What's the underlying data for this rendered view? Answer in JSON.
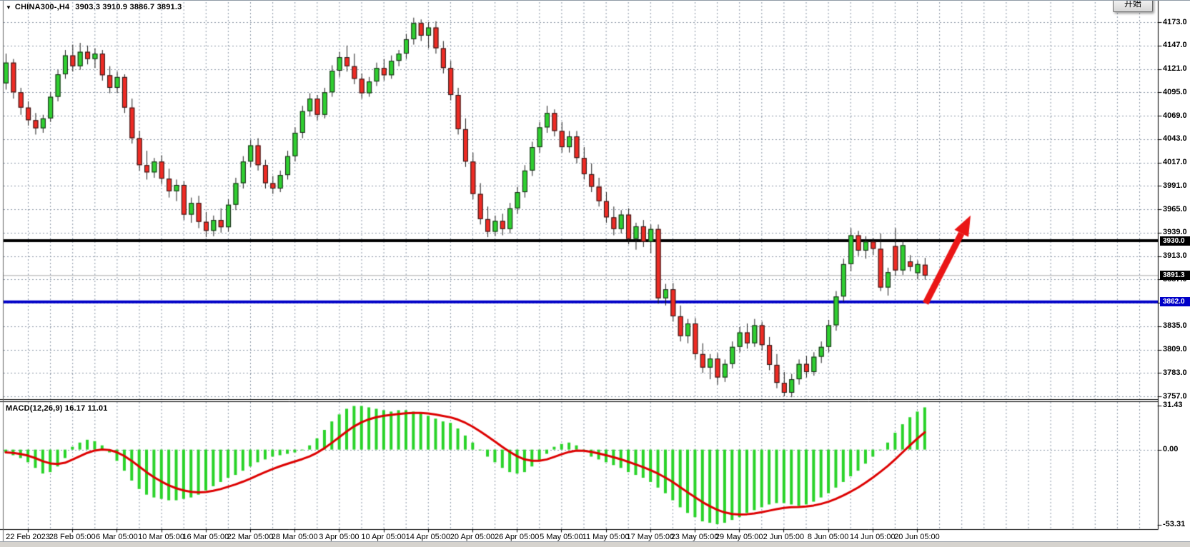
{
  "window": {
    "title_symbol": "CHINA300-,H4",
    "title_ohlc": "3903.3 3910.9 3886.7 3891.3",
    "dropdown_glyph": "▼",
    "start_button_label": "开始"
  },
  "chart_data": {
    "type": "candlestick",
    "symbol": "CHINA300-",
    "timeframe": "H4",
    "quote": {
      "open": 3903.3,
      "high": 3910.9,
      "low": 3886.7,
      "close": 3891.3
    },
    "colors": {
      "bull": "#2fcf30",
      "bear": "#ef2b24",
      "outline": "#1c1c1c",
      "grid": "#8a96a6",
      "resistance_line": "#000000",
      "support_line": "#0000c8",
      "current_price_line": "#aaaaaa",
      "macd_histogram": "#29d329",
      "macd_signal": "#dd0000",
      "arrow": "#ea1515",
      "badge_black": "#000000",
      "badge_blue": "#0000c8"
    },
    "price_axis": {
      "labels": [
        "4173.0",
        "4147.0",
        "4121.0",
        "4095.0",
        "4069.0",
        "4043.0",
        "4017.0",
        "3991.0",
        "3965.0",
        "3939.0",
        "3913.0",
        "3887.0",
        "3861.0",
        "3835.0",
        "3809.0",
        "3783.0",
        "3757.0"
      ],
      "top_value": 4173.0,
      "bottom_value": 3757.0,
      "step": 26.0
    },
    "hlines": [
      {
        "price": 3930.0,
        "label": "3930.0",
        "style": "thick",
        "color_key": "resistance_line",
        "badge": "badge_black"
      },
      {
        "price": 3891.3,
        "label": "3891.3",
        "style": "thin",
        "color_key": "current_price_line",
        "badge": "badge_black"
      },
      {
        "price": 3862.0,
        "label": "3862.0",
        "style": "thick",
        "color_key": "support_line",
        "badge": "badge_blue"
      }
    ],
    "candles": [
      [
        4105,
        4138,
        4098,
        4128
      ],
      [
        4128,
        4132,
        4088,
        4095
      ],
      [
        4095,
        4100,
        4070,
        4078
      ],
      [
        4078,
        4085,
        4058,
        4064
      ],
      [
        4064,
        4072,
        4048,
        4055
      ],
      [
        4055,
        4070,
        4050,
        4066
      ],
      [
        4066,
        4095,
        4062,
        4090
      ],
      [
        4090,
        4120,
        4085,
        4115
      ],
      [
        4115,
        4142,
        4110,
        4136
      ],
      [
        4136,
        4148,
        4118,
        4124
      ],
      [
        4124,
        4150,
        4120,
        4140
      ],
      [
        4140,
        4147,
        4126,
        4132
      ],
      [
        4132,
        4144,
        4122,
        4138
      ],
      [
        4138,
        4142,
        4108,
        4114
      ],
      [
        4114,
        4124,
        4094,
        4100
      ],
      [
        4100,
        4118,
        4094,
        4112
      ],
      [
        4112,
        4115,
        4072,
        4078
      ],
      [
        4078,
        4088,
        4038,
        4044
      ],
      [
        4044,
        4052,
        4008,
        4014
      ],
      [
        4014,
        4030,
        3998,
        4006
      ],
      [
        4006,
        4022,
        4000,
        4018
      ],
      [
        4018,
        4025,
        3993,
        3999
      ],
      [
        3999,
        4010,
        3978,
        3985
      ],
      [
        3985,
        3998,
        3974,
        3992
      ],
      [
        3992,
        3996,
        3953,
        3959
      ],
      [
        3959,
        3978,
        3950,
        3972
      ],
      [
        3972,
        3980,
        3944,
        3951
      ],
      [
        3951,
        3962,
        3934,
        3941
      ],
      [
        3941,
        3958,
        3935,
        3953
      ],
      [
        3953,
        3966,
        3939,
        3945
      ],
      [
        3945,
        3976,
        3940,
        3970
      ],
      [
        3970,
        4000,
        3964,
        3994
      ],
      [
        3994,
        4024,
        3988,
        4018
      ],
      [
        4018,
        4042,
        4012,
        4036
      ],
      [
        4036,
        4044,
        4008,
        4014
      ],
      [
        4014,
        4020,
        3988,
        3994
      ],
      [
        3994,
        4002,
        3982,
        3988
      ],
      [
        3988,
        4008,
        3984,
        4003
      ],
      [
        4003,
        4030,
        3998,
        4024
      ],
      [
        4024,
        4056,
        4018,
        4050
      ],
      [
        4050,
        4080,
        4044,
        4074
      ],
      [
        4074,
        4094,
        4068,
        4088
      ],
      [
        4088,
        4092,
        4064,
        4070
      ],
      [
        4070,
        4100,
        4066,
        4095
      ],
      [
        4095,
        4125,
        4090,
        4119
      ],
      [
        4119,
        4140,
        4112,
        4134
      ],
      [
        4134,
        4147,
        4118,
        4124
      ],
      [
        4124,
        4138,
        4104,
        4110
      ],
      [
        4110,
        4116,
        4088,
        4094
      ],
      [
        4094,
        4112,
        4090,
        4107
      ],
      [
        4107,
        4128,
        4102,
        4122
      ],
      [
        4122,
        4132,
        4108,
        4114
      ],
      [
        4114,
        4136,
        4110,
        4130
      ],
      [
        4130,
        4142,
        4124,
        4138
      ],
      [
        4138,
        4160,
        4132,
        4154
      ],
      [
        4154,
        4178,
        4148,
        4172
      ],
      [
        4172,
        4176,
        4152,
        4158
      ],
      [
        4158,
        4173,
        4144,
        4167
      ],
      [
        4167,
        4174,
        4138,
        4144
      ],
      [
        4144,
        4152,
        4116,
        4122
      ],
      [
        4122,
        4130,
        4086,
        4092
      ],
      [
        4092,
        4100,
        4048,
        4054
      ],
      [
        4054,
        4066,
        4012,
        4018
      ],
      [
        4018,
        4028,
        3976,
        3982
      ],
      [
        3982,
        3994,
        3948,
        3954
      ],
      [
        3954,
        3968,
        3934,
        3940
      ],
      [
        3940,
        3958,
        3935,
        3952
      ],
      [
        3952,
        3960,
        3936,
        3943
      ],
      [
        3943,
        3972,
        3938,
        3966
      ],
      [
        3966,
        3990,
        3960,
        3984
      ],
      [
        3984,
        4014,
        3978,
        4008
      ],
      [
        4008,
        4040,
        4002,
        4034
      ],
      [
        4034,
        4062,
        4028,
        4056
      ],
      [
        4056,
        4080,
        4050,
        4072
      ],
      [
        4072,
        4076,
        4046,
        4052
      ],
      [
        4052,
        4062,
        4028,
        4034
      ],
      [
        4034,
        4052,
        4028,
        4046
      ],
      [
        4046,
        4052,
        4016,
        4022
      ],
      [
        4022,
        4034,
        3998,
        4004
      ],
      [
        4004,
        4016,
        3984,
        3990
      ],
      [
        3990,
        4000,
        3968,
        3974
      ],
      [
        3974,
        3984,
        3950,
        3956
      ],
      [
        3956,
        3968,
        3936,
        3943
      ],
      [
        3943,
        3964,
        3938,
        3959
      ],
      [
        3959,
        3966,
        3926,
        3932
      ],
      [
        3932,
        3950,
        3920,
        3946
      ],
      [
        3946,
        3953,
        3923,
        3929
      ],
      [
        3929,
        3948,
        3916,
        3943
      ],
      [
        3943,
        3948,
        3860,
        3866
      ],
      [
        3866,
        3882,
        3858,
        3876
      ],
      [
        3876,
        3883,
        3840,
        3846
      ],
      [
        3846,
        3858,
        3818,
        3824
      ],
      [
        3824,
        3843,
        3816,
        3838
      ],
      [
        3838,
        3844,
        3798,
        3804
      ],
      [
        3804,
        3816,
        3783,
        3789
      ],
      [
        3789,
        3804,
        3776,
        3799
      ],
      [
        3799,
        3805,
        3770,
        3778
      ],
      [
        3778,
        3798,
        3773,
        3793
      ],
      [
        3793,
        3818,
        3788,
        3812
      ],
      [
        3812,
        3834,
        3806,
        3828
      ],
      [
        3828,
        3838,
        3810,
        3816
      ],
      [
        3816,
        3843,
        3812,
        3836
      ],
      [
        3836,
        3840,
        3808,
        3814
      ],
      [
        3814,
        3823,
        3786,
        3792
      ],
      [
        3792,
        3804,
        3766,
        3772
      ],
      [
        3772,
        3784,
        3757,
        3761
      ],
      [
        3761,
        3782,
        3756,
        3776
      ],
      [
        3776,
        3798,
        3770,
        3793
      ],
      [
        3793,
        3802,
        3778,
        3784
      ],
      [
        3784,
        3806,
        3780,
        3801
      ],
      [
        3801,
        3818,
        3794,
        3812
      ],
      [
        3812,
        3842,
        3806,
        3836
      ],
      [
        3836,
        3874,
        3830,
        3868
      ],
      [
        3868,
        3910,
        3862,
        3904
      ],
      [
        3904,
        3944,
        3896,
        3936
      ],
      [
        3936,
        3941,
        3913,
        3919
      ],
      [
        3919,
        3935,
        3910,
        3929
      ],
      [
        3929,
        3933,
        3914,
        3921
      ],
      [
        3921,
        3938,
        3874,
        3878
      ],
      [
        3878,
        3900,
        3869,
        3895
      ],
      [
        3924,
        3944,
        3891,
        3897
      ],
      [
        3897,
        3931,
        3892,
        3925
      ],
      [
        3907,
        3914,
        3896,
        3901
      ],
      [
        3894,
        3908,
        3887,
        3904
      ],
      [
        3903.3,
        3910.9,
        3886.7,
        3891.3
      ]
    ],
    "macd": {
      "label": "MACD(12,26,9) 16.17 11.01",
      "params": "12,26,9",
      "macd_value": 16.17,
      "signal_value": 11.01,
      "scale_labels": [
        "31.43",
        "0.00",
        "-53.31"
      ],
      "scale_values": [
        31.43,
        0.0,
        -53.31
      ],
      "histogram": [
        -2,
        -4,
        -6,
        -9,
        -13,
        -17,
        -16,
        -12,
        -6,
        2,
        5,
        7,
        6,
        3,
        -2,
        -8,
        -15,
        -22,
        -28,
        -32,
        -34,
        -35,
        -36,
        -36,
        -35,
        -34,
        -32,
        -29,
        -26,
        -23,
        -20,
        -18,
        -15,
        -12,
        -9,
        -7,
        -5,
        -4,
        -3,
        -2,
        0,
        3,
        8,
        14,
        20,
        25,
        29,
        31,
        31,
        30,
        29,
        28,
        27,
        28,
        28,
        27,
        26,
        24,
        22,
        20,
        19,
        15,
        10,
        5,
        0,
        -5,
        -9,
        -13,
        -16,
        -17,
        -16,
        -12,
        -8,
        -3,
        2,
        4,
        5,
        3,
        -1,
        -5,
        -7,
        -9,
        -11,
        -13,
        -16,
        -18,
        -20,
        -23,
        -27,
        -31,
        -36,
        -41,
        -45,
        -48,
        -51,
        -52,
        -53,
        -52,
        -50,
        -48,
        -45,
        -43,
        -41,
        -39,
        -38,
        -38,
        -39,
        -40,
        -39,
        -37,
        -34,
        -31,
        -27,
        -23,
        -19,
        -15,
        -10,
        -5,
        0,
        5,
        12,
        18,
        23,
        27,
        30
      ]
    },
    "dates": [
      "22 Feb 2023",
      "28 Feb 05:00",
      "6 Mar 05:00",
      "10 Mar 05:00",
      "16 Mar 05:00",
      "22 Mar 05:00",
      "28 Mar 05:00",
      "3 Apr 05:00",
      "10 Apr 05:00",
      "14 Apr 05:00",
      "20 Apr 05:00",
      "26 Apr 05:00",
      "5 May 05:00",
      "11 May 05:00",
      "17 May 05:00",
      "23 May 05:00",
      "29 May 05:00",
      "2 Jun 05:00",
      "8 Jun 05:00",
      "14 Jun 05:00",
      "20 Jun 05:00"
    ],
    "annotation_arrow": {
      "from_price": 3862.0,
      "to_price": 3958.0,
      "color": "#ea1515"
    }
  }
}
